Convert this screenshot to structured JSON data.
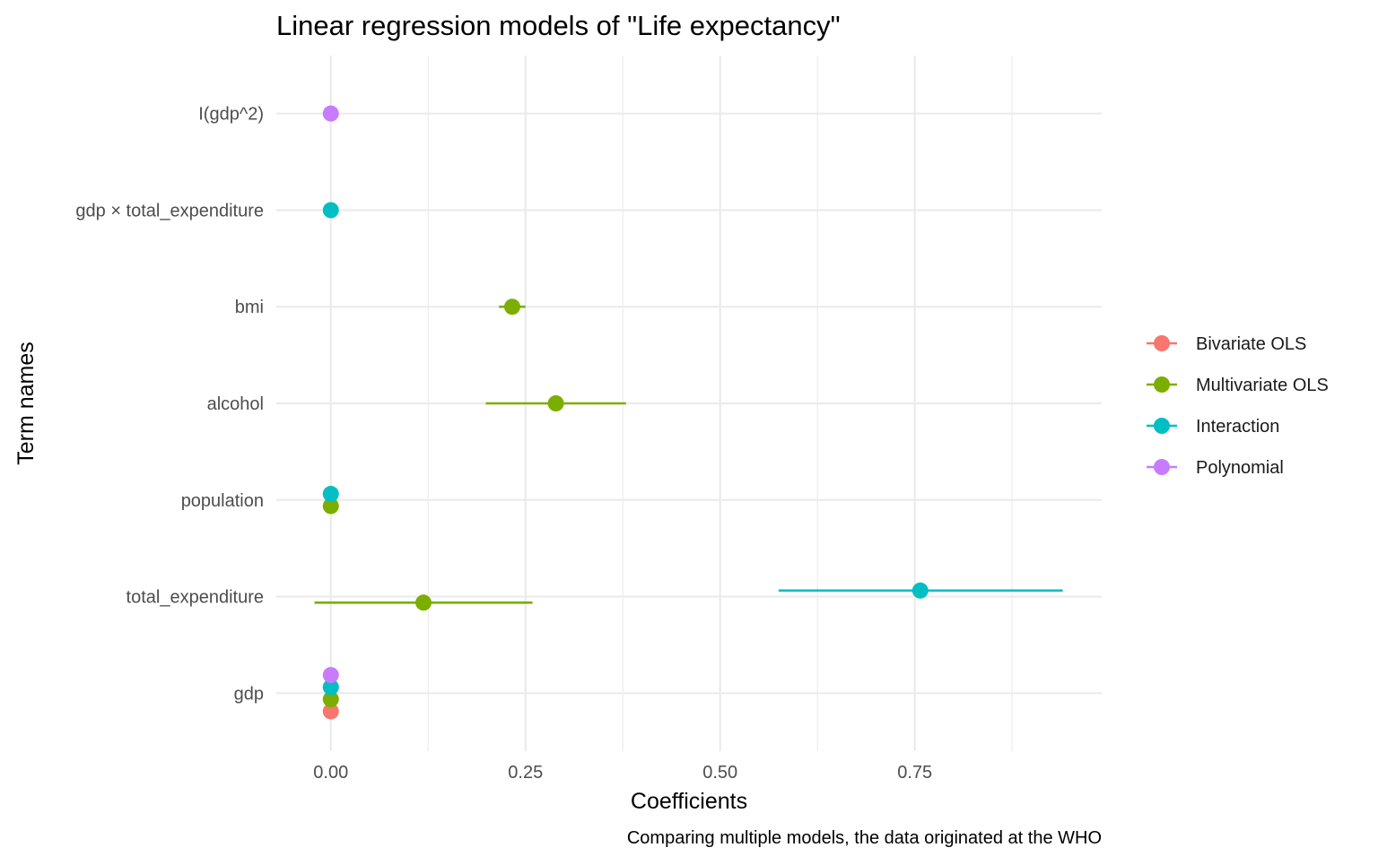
{
  "chart_data": {
    "type": "scatter",
    "title": "Linear regression models of \"Life expectancy\"",
    "xlabel": "Coefficients",
    "ylabel": "Term names",
    "caption": "Comparing multiple models, the data originated at the WHO",
    "xlim": [
      -0.07,
      0.99
    ],
    "x_ticks": [
      0.0,
      0.25,
      0.5,
      0.75
    ],
    "x_tick_labels": [
      "0.00",
      "0.25",
      "0.50",
      "0.75"
    ],
    "categories": [
      "gdp",
      "total_expenditure",
      "population",
      "alcohol",
      "bmi",
      "gdp × total_expenditure",
      "I(gdp^2)"
    ],
    "grid": true,
    "legend_position": "right",
    "series": [
      {
        "name": "Bivariate OLS",
        "color": "#F8766D",
        "points": [
          {
            "term": "gdp",
            "estimate": 0.0,
            "low": 0.0,
            "high": 0.0
          }
        ]
      },
      {
        "name": "Multivariate OLS",
        "color": "#7CAE00",
        "points": [
          {
            "term": "gdp",
            "estimate": 0.0,
            "low": 0.0,
            "high": 0.0
          },
          {
            "term": "total_expenditure",
            "estimate": 0.119,
            "low": -0.021,
            "high": 0.259
          },
          {
            "term": "population",
            "estimate": 0.0,
            "low": 0.0,
            "high": 0.0
          },
          {
            "term": "alcohol",
            "estimate": 0.289,
            "low": 0.199,
            "high": 0.379
          },
          {
            "term": "bmi",
            "estimate": 0.233,
            "low": 0.216,
            "high": 0.25
          }
        ]
      },
      {
        "name": "Interaction",
        "color": "#00BFC4",
        "points": [
          {
            "term": "gdp",
            "estimate": 0.0,
            "low": 0.0,
            "high": 0.0
          },
          {
            "term": "total_expenditure",
            "estimate": 0.757,
            "low": 0.575,
            "high": 0.94
          },
          {
            "term": "population",
            "estimate": 0.0,
            "low": 0.0,
            "high": 0.0
          },
          {
            "term": "gdp × total_expenditure",
            "estimate": 0.0,
            "low": 0.0,
            "high": 0.0
          }
        ]
      },
      {
        "name": "Polynomial",
        "color": "#C77CFF",
        "points": [
          {
            "term": "gdp",
            "estimate": 0.0,
            "low": 0.0,
            "high": 0.0
          },
          {
            "term": "I(gdp^2)",
            "estimate": 0.0,
            "low": 0.0,
            "high": 0.0
          }
        ]
      }
    ]
  }
}
